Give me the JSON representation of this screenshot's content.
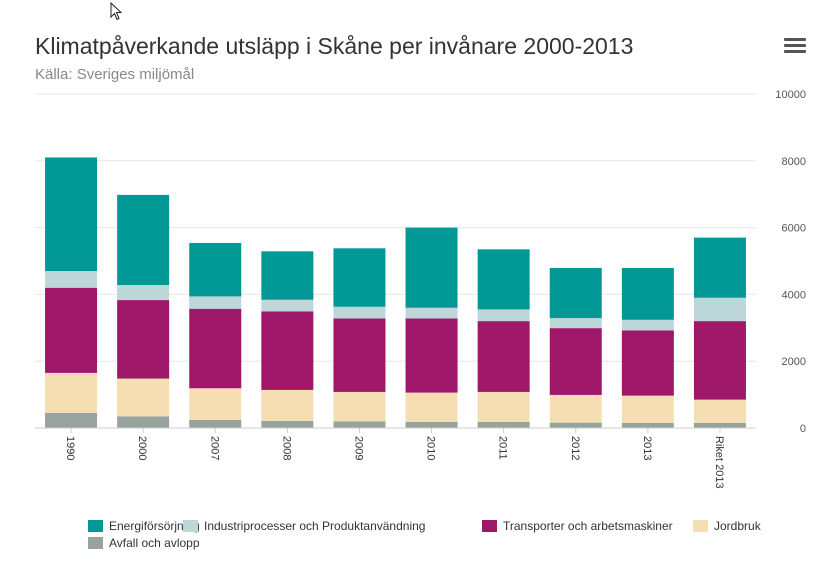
{
  "header": {
    "title": "Klimatpåverkande utsläpp i Skåne per invånare 2000-2013",
    "subtitle": "Källa: Sveriges miljömål"
  },
  "menu": {
    "icon": "hamburger-menu-icon"
  },
  "chart_data": {
    "type": "bar",
    "stacked": true,
    "categories": [
      "1990",
      "2000",
      "2007",
      "2008",
      "2009",
      "2010",
      "2011",
      "2012",
      "2013",
      "Riket 2013"
    ],
    "series": [
      {
        "name": "Avfall och avlopp",
        "color": "#98a39e",
        "values": [
          450,
          350,
          240,
          210,
          200,
          180,
          180,
          160,
          150,
          150
        ]
      },
      {
        "name": "Jordbruk",
        "color": "#f5dfb2",
        "values": [
          1200,
          1130,
          950,
          930,
          880,
          880,
          900,
          830,
          820,
          700
        ]
      },
      {
        "name": "Transporter och arbetsmaskiner",
        "color": "#9e1768",
        "values": [
          2550,
          2350,
          2380,
          2350,
          2200,
          2220,
          2120,
          2000,
          1950,
          2350
        ]
      },
      {
        "name": "Industriprocesser och Produktanvändning",
        "color": "#bdd7d9",
        "values": [
          500,
          450,
          370,
          350,
          350,
          320,
          350,
          300,
          320,
          700
        ]
      },
      {
        "name": "Energiförsörjning",
        "color": "#019896",
        "values": [
          3400,
          2700,
          1600,
          1450,
          1750,
          2400,
          1800,
          1500,
          1550,
          1800
        ]
      }
    ],
    "legend_order": [
      "Energiförsörjning",
      "Industriprocesser och Produktanvändning",
      "Transporter och arbetsmaskiner",
      "Jordbruk",
      "Avfall och avlopp"
    ],
    "y_ticks": [
      0,
      2000,
      4000,
      6000,
      8000,
      10000
    ],
    "ylim": [
      0,
      10000
    ],
    "yaxis_side": "right",
    "grid": true,
    "legend_position": "bottom",
    "title": "Klimatpåverkande utsläpp i Skåne per invånare 2000-2013",
    "xlabel": "",
    "ylabel": ""
  }
}
